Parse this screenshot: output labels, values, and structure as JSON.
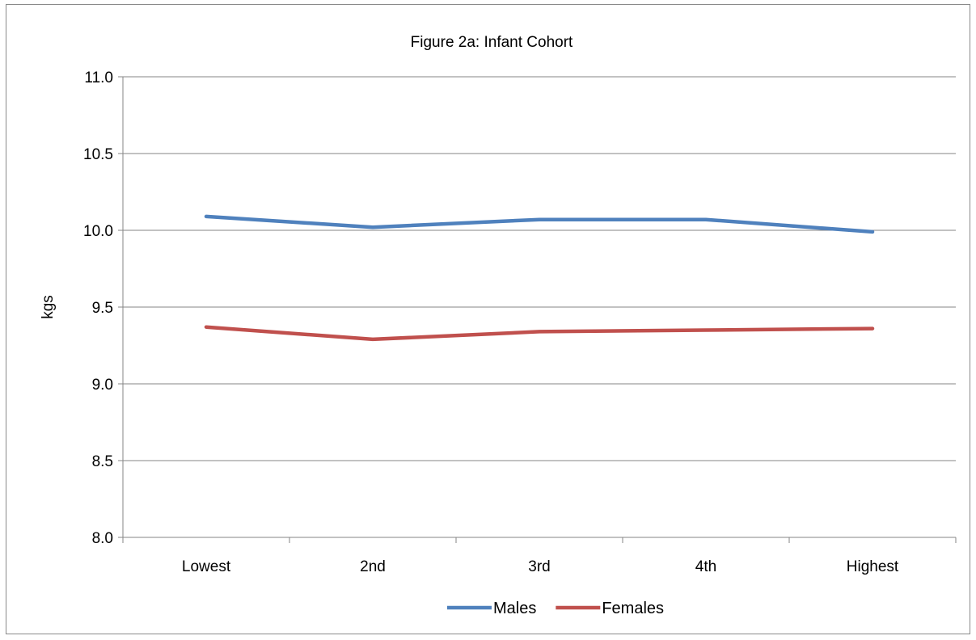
{
  "chart_data": {
    "type": "line",
    "title": "Figure 2a: Infant Cohort",
    "xlabel": "",
    "ylabel": "kgs",
    "categories": [
      "Lowest",
      "2nd",
      "3rd",
      "4th",
      "Highest"
    ],
    "ylim": [
      8.0,
      11.0
    ],
    "yticks": [
      "8.0",
      "8.5",
      "9.0",
      "9.5",
      "10.0",
      "10.5",
      "11.0"
    ],
    "grid": true,
    "legend_position": "bottom",
    "series": [
      {
        "name": "Males",
        "color": "#4F81BD",
        "values": [
          10.09,
          10.02,
          10.07,
          10.07,
          9.99
        ]
      },
      {
        "name": "Females",
        "color": "#C0504D",
        "values": [
          9.37,
          9.29,
          9.34,
          9.35,
          9.36
        ]
      }
    ]
  }
}
